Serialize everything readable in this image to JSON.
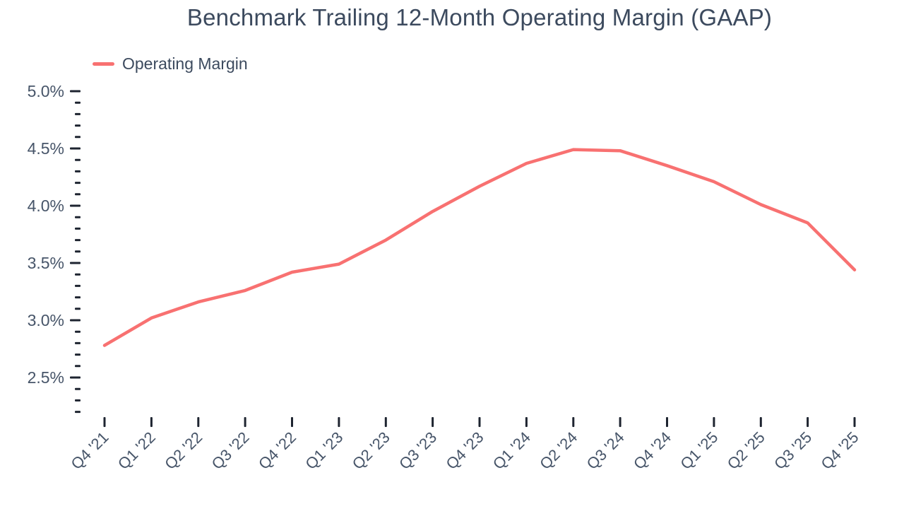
{
  "title": "Benchmark Trailing 12-Month Operating Margin (GAAP)",
  "legend": {
    "items": [
      {
        "label": "Operating Margin",
        "color": "#f87171"
      }
    ]
  },
  "colors": {
    "accent": "#f87171",
    "title_text": "#3c4a5e",
    "axis_label_text": "#475569",
    "tick_mark": "#1e2430",
    "background": "#ffffff"
  },
  "chart_data": {
    "type": "line",
    "title": "Benchmark Trailing 12-Month Operating Margin (GAAP)",
    "categories": [
      "Q4 '21",
      "Q1 '22",
      "Q2 '22",
      "Q3 '22",
      "Q4 '22",
      "Q1 '23",
      "Q2 '23",
      "Q3 '23",
      "Q4 '23",
      "Q1 '24",
      "Q2 '24",
      "Q3 '24",
      "Q4 '24",
      "Q1 '25",
      "Q2 '25",
      "Q3 '25",
      "Q4 '25"
    ],
    "series": [
      {
        "name": "Operating Margin",
        "color": "#f87171",
        "values": [
          2.78,
          3.02,
          3.16,
          3.26,
          3.42,
          3.49,
          3.7,
          3.95,
          4.17,
          4.37,
          4.49,
          4.48,
          4.35,
          4.21,
          4.01,
          3.85,
          3.44
        ]
      }
    ],
    "xlabel": "",
    "ylabel": "",
    "value_unit": "%",
    "ylim": [
      2.2,
      5.0
    ],
    "y_major_step": 0.5,
    "y_minor_step": 0.1,
    "y_tick_labels": [
      "2.5%",
      "3.0%",
      "3.5%",
      "4.0%",
      "4.5%",
      "5.0%"
    ],
    "grid": false,
    "legend_position": "top-left",
    "x_label_rotation_deg": -45
  }
}
